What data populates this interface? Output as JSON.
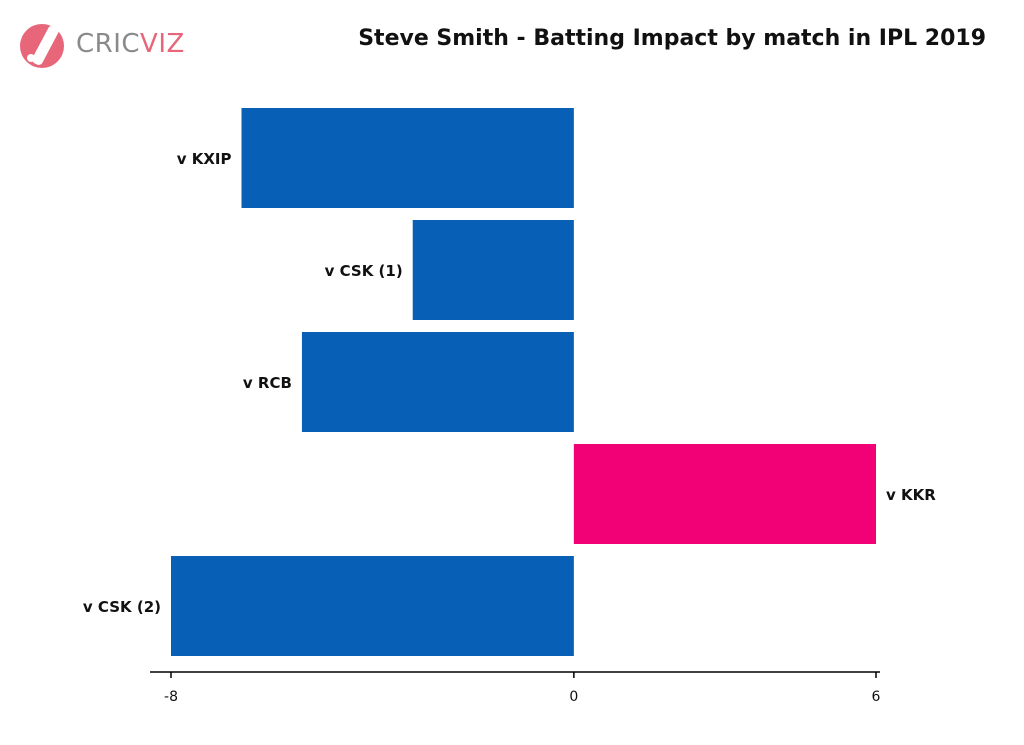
{
  "brand": {
    "name_part1": "CRIC",
    "name_part2": "VIZ",
    "logo_icon": "cricket-bat-ball-icon",
    "logo_color": "#e8667a",
    "text_gray": "#8a8a8a"
  },
  "chart_data": {
    "type": "bar",
    "orientation": "horizontal",
    "title": "Steve Smith - Batting Impact by match in IPL 2019",
    "xlabel": "",
    "ylabel": "",
    "xlim": [
      -8,
      6
    ],
    "xticks": [
      "-8",
      "0",
      "6"
    ],
    "grid": false,
    "legend": "none",
    "categories": [
      "v KXIP",
      "v CSK (1)",
      "v RCB",
      "v KKR",
      "v CSK (2)"
    ],
    "values": [
      -6.6,
      -3.2,
      -5.4,
      6.0,
      -8.0
    ],
    "colors": {
      "negative": "#075fb6",
      "positive": "#f20075"
    }
  }
}
